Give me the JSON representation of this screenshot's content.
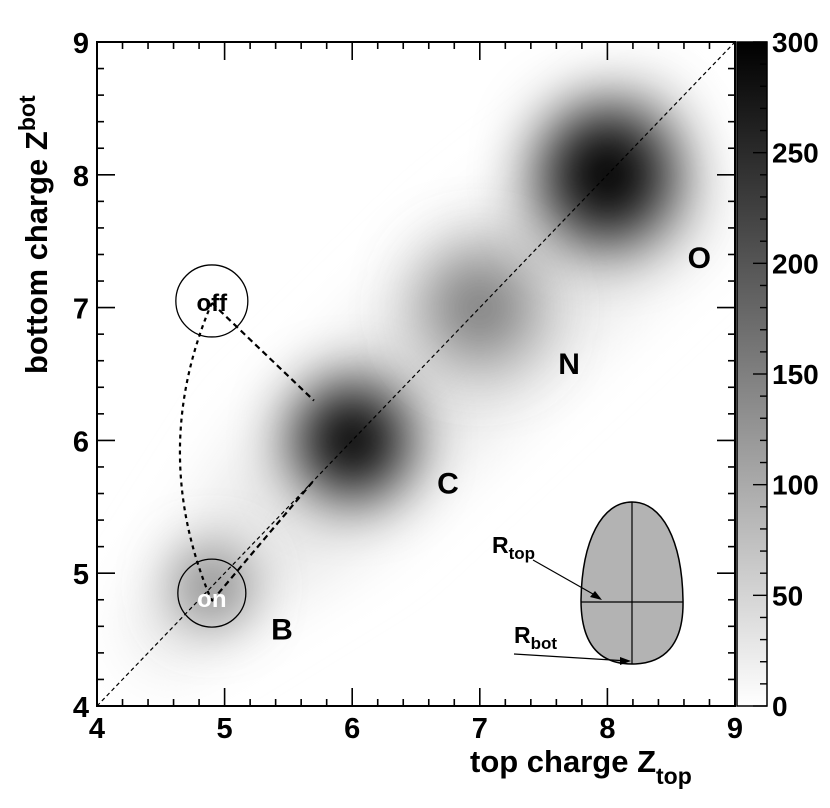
{
  "chart_data": {
    "type": "heatmap",
    "title": "",
    "xlabel_main": "top charge Z",
    "xlabel_sub": "top",
    "ylabel_main": "bottom charge Z",
    "ylabel_sub": "bot",
    "xlim": [
      4,
      9
    ],
    "ylim": [
      4,
      9
    ],
    "x_ticks": [
      "4",
      "5",
      "6",
      "7",
      "8",
      "9"
    ],
    "y_ticks": [
      "4",
      "5",
      "6",
      "7",
      "8",
      "9"
    ],
    "colorbar": {
      "range": [
        0,
        300
      ],
      "ticks": [
        "0",
        "50",
        "100",
        "150",
        "200",
        "250",
        "300"
      ],
      "scale": "grayscale (white = 0, black = 300)"
    },
    "clusters": [
      {
        "label": "B",
        "x": 4.9,
        "y": 4.9,
        "peak": 140
      },
      {
        "label": "C",
        "x": 6.0,
        "y": 6.0,
        "peak": 300
      },
      {
        "label": "N",
        "x": 7.0,
        "y": 7.0,
        "peak": 170
      },
      {
        "label": "O",
        "x": 8.0,
        "y": 8.0,
        "peak": 300
      }
    ],
    "cluster_labels": [
      {
        "text": "B",
        "x": 5.45,
        "y": 4.5
      },
      {
        "text": "C",
        "x": 6.75,
        "y": 5.6
      },
      {
        "text": "N",
        "x": 7.7,
        "y": 6.5
      },
      {
        "text": "O",
        "x": 8.72,
        "y": 7.3
      }
    ],
    "annotations": [
      {
        "text": "off",
        "x": 4.9,
        "y": 7.05
      },
      {
        "text": "on",
        "x": 4.9,
        "y": 4.82
      }
    ],
    "diagonal": {
      "from": [
        4,
        4
      ],
      "to": [
        9,
        9
      ],
      "style": "dashed"
    },
    "inset": {
      "labels": [
        {
          "main": "R",
          "sub": "top"
        },
        {
          "main": "R",
          "sub": "bot"
        }
      ]
    }
  }
}
